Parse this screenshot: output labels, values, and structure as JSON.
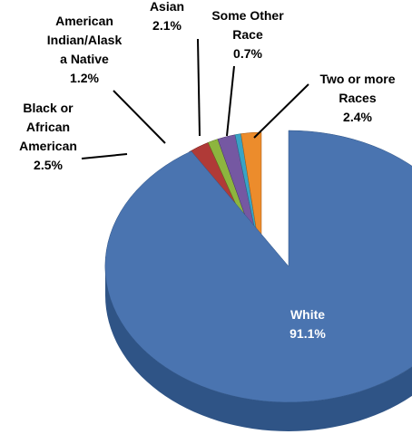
{
  "chart_data": {
    "type": "pie",
    "title": "",
    "style": "3d-exploded",
    "legend": "none",
    "slices": [
      {
        "label": [
          "White"
        ],
        "value": 91.1,
        "display": "91.1%",
        "color": "#4a74b0",
        "side_color": "#2f5486"
      },
      {
        "label": [
          "Black or",
          "African",
          "American"
        ],
        "value": 2.5,
        "display": "2.5%",
        "color": "#b03a37",
        "side_color": "#6e1f1c"
      },
      {
        "label": [
          "American",
          "Indian/Alask",
          "a Native"
        ],
        "value": 1.2,
        "display": "1.2%",
        "color": "#8db53e",
        "side_color": "#56741f"
      },
      {
        "label": [
          "Asian"
        ],
        "value": 2.1,
        "display": "2.1%",
        "color": "#7558a2",
        "side_color": "#47326a"
      },
      {
        "label": [
          "Some Other",
          "Race"
        ],
        "value": 0.7,
        "display": "0.7%",
        "color": "#39a3c5",
        "side_color": "#1f6b84"
      },
      {
        "label": [
          "Two or more",
          "Races"
        ],
        "value": 2.4,
        "display": "2.4%",
        "color": "#ec8c2c",
        "side_color": "#a65810"
      }
    ]
  }
}
